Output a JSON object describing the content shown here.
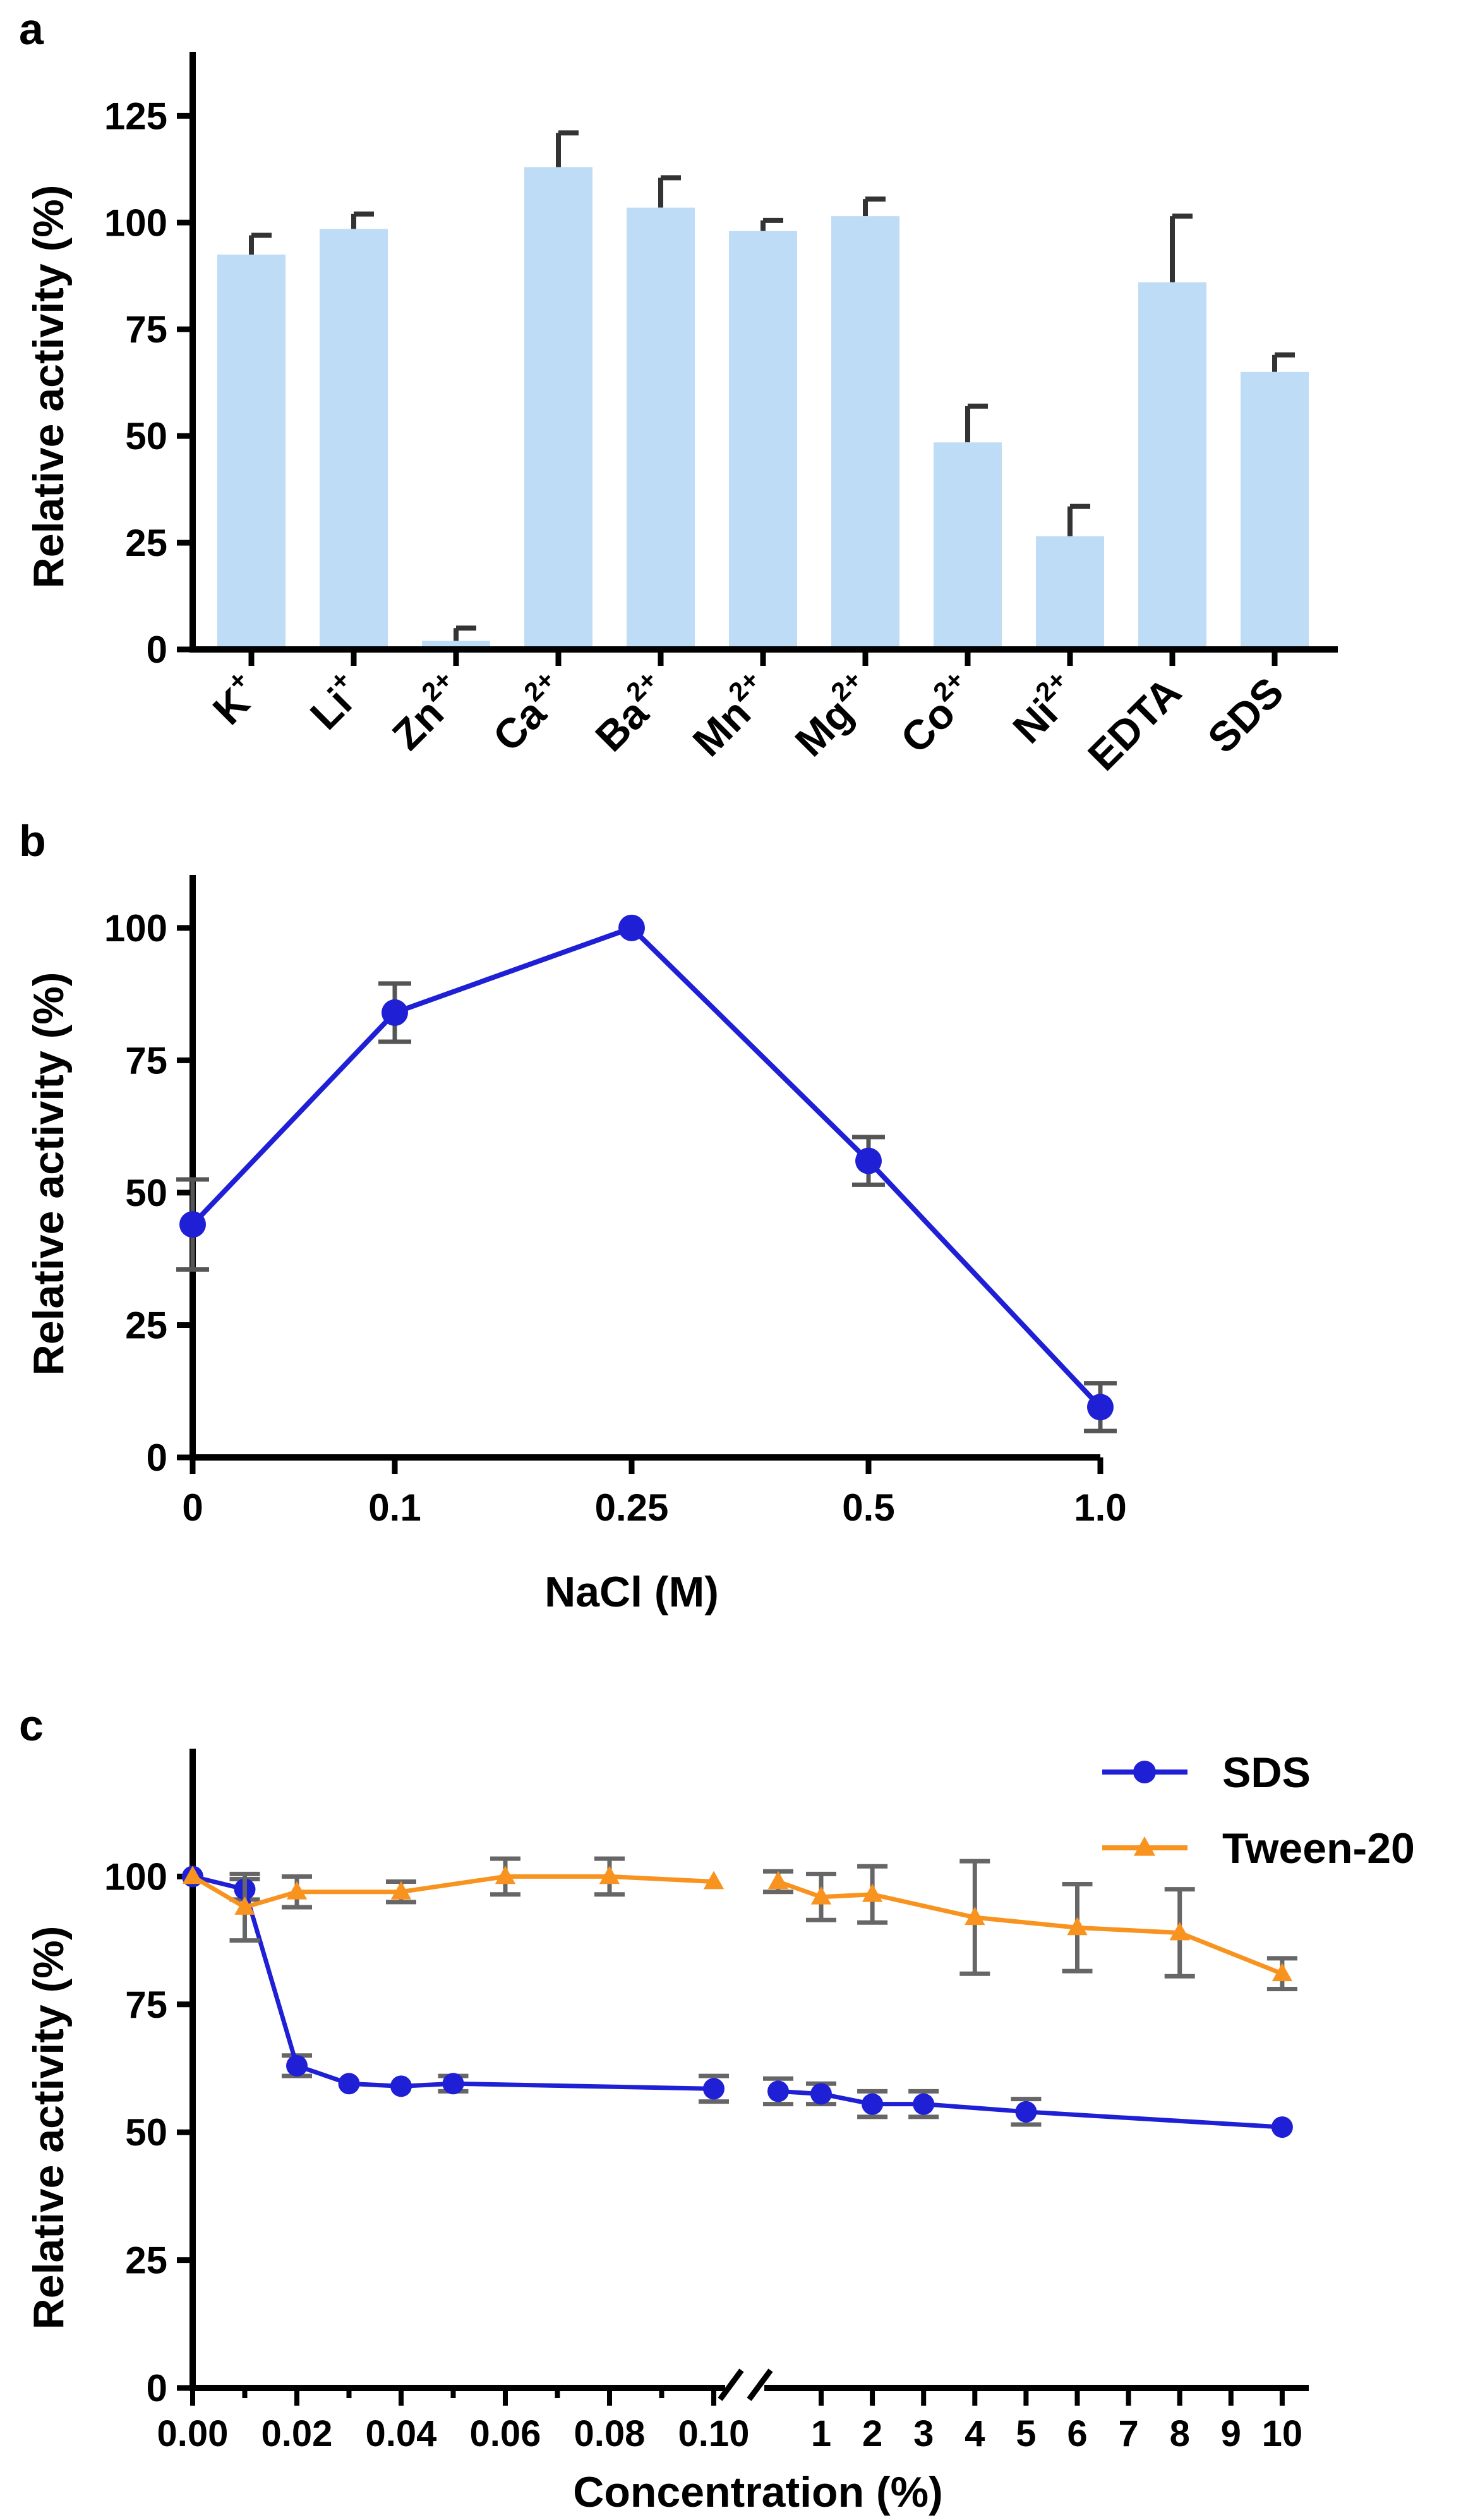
{
  "figure": {
    "panels": [
      "a",
      "b",
      "c"
    ]
  },
  "chart_data": [
    {
      "panel": "a",
      "type": "bar",
      "ylabel": "Relative activity (%)",
      "ylim": [
        0,
        140
      ],
      "yticks": [
        0,
        25,
        50,
        75,
        100,
        125
      ],
      "categories": [
        {
          "base": "K",
          "sup": "+"
        },
        {
          "base": "Li",
          "sup": "+"
        },
        {
          "base": "Zn",
          "sup": "2+"
        },
        {
          "base": "Ca",
          "sup": "2+"
        },
        {
          "base": "Ba",
          "sup": "2+"
        },
        {
          "base": "Mn",
          "sup": "2+"
        },
        {
          "base": "Mg",
          "sup": "2+"
        },
        {
          "base": "Co",
          "sup": "2+"
        },
        {
          "base": "Ni",
          "sup": "2+"
        },
        {
          "base": "EDTA",
          "sup": ""
        },
        {
          "base": "SDS",
          "sup": ""
        }
      ],
      "values": [
        92.5,
        98.5,
        2,
        113,
        103.5,
        98,
        101.5,
        48.5,
        26.5,
        86,
        65
      ],
      "errors": [
        4.5,
        3.5,
        3,
        8,
        7,
        2.5,
        4,
        8.5,
        7,
        15.5,
        4
      ],
      "bar_color": "#bedcf5",
      "error_color": "#333333"
    },
    {
      "panel": "b",
      "type": "line",
      "xlabel": "NaCl (M)",
      "ylabel": "Relative activity (%)",
      "ylim": [
        0,
        110
      ],
      "yticks": [
        0,
        25,
        50,
        75,
        100
      ],
      "xticklabels": [
        "0",
        "0.1",
        "0.25",
        "0.5",
        "1.0"
      ],
      "values": [
        44,
        84,
        100,
        56,
        9.5
      ],
      "errors": [
        8.5,
        5.5,
        0,
        4.5,
        4.5
      ],
      "line_color": "#1f1fd6"
    },
    {
      "panel": "c",
      "type": "line",
      "xlabel": "Concentration (%)",
      "ylabel": "Relative activity (%)",
      "ylim": [
        0,
        125
      ],
      "yticks": [
        0,
        25,
        50,
        75,
        100
      ],
      "xticks_left": [
        "0.00",
        "0.02",
        "0.04",
        "0.06",
        "0.08",
        "0.10"
      ],
      "xticks_right": [
        "1",
        "2",
        "3",
        "4",
        "5",
        "6",
        "7",
        "8",
        "9",
        "10"
      ],
      "legend": {
        "position": "top-right"
      },
      "series": [
        {
          "name": "SDS",
          "color": "#1f1fd6",
          "marker": "circle",
          "left": {
            "x": [
              0,
              0.01,
              0.02,
              0.03,
              0.04,
              0.05,
              0.1
            ],
            "y": [
              100,
              97.5,
              63,
              59.5,
              59,
              59.5,
              58.5
            ],
            "err": [
              0,
              2,
              2,
              0,
              0,
              1.5,
              2.5
            ]
          },
          "right": {
            "x": [
              0.5,
              1,
              2,
              3,
              5,
              10
            ],
            "y": [
              58,
              57.5,
              55.5,
              55.5,
              54,
              51
            ],
            "err": [
              2.5,
              2,
              2.5,
              2.5,
              2.5,
              0
            ]
          }
        },
        {
          "name": "Tween-20",
          "color": "#f7931e",
          "marker": "triangle",
          "left": {
            "x": [
              0,
              0.01,
              0.02,
              0.04,
              0.06,
              0.08,
              0.1
            ],
            "y": [
              100,
              94,
              97,
              97,
              100,
              100,
              99
            ],
            "err": [
              0,
              6.5,
              3,
              2,
              3.5,
              3.5,
              0
            ]
          },
          "right": {
            "x": [
              0.5,
              1,
              2,
              4,
              6,
              8,
              10
            ],
            "y": [
              99,
              96,
              96.5,
              92,
              90,
              89,
              81
            ],
            "err": [
              2,
              4.5,
              5.5,
              11,
              8.5,
              8.5,
              3
            ]
          }
        }
      ]
    }
  ]
}
